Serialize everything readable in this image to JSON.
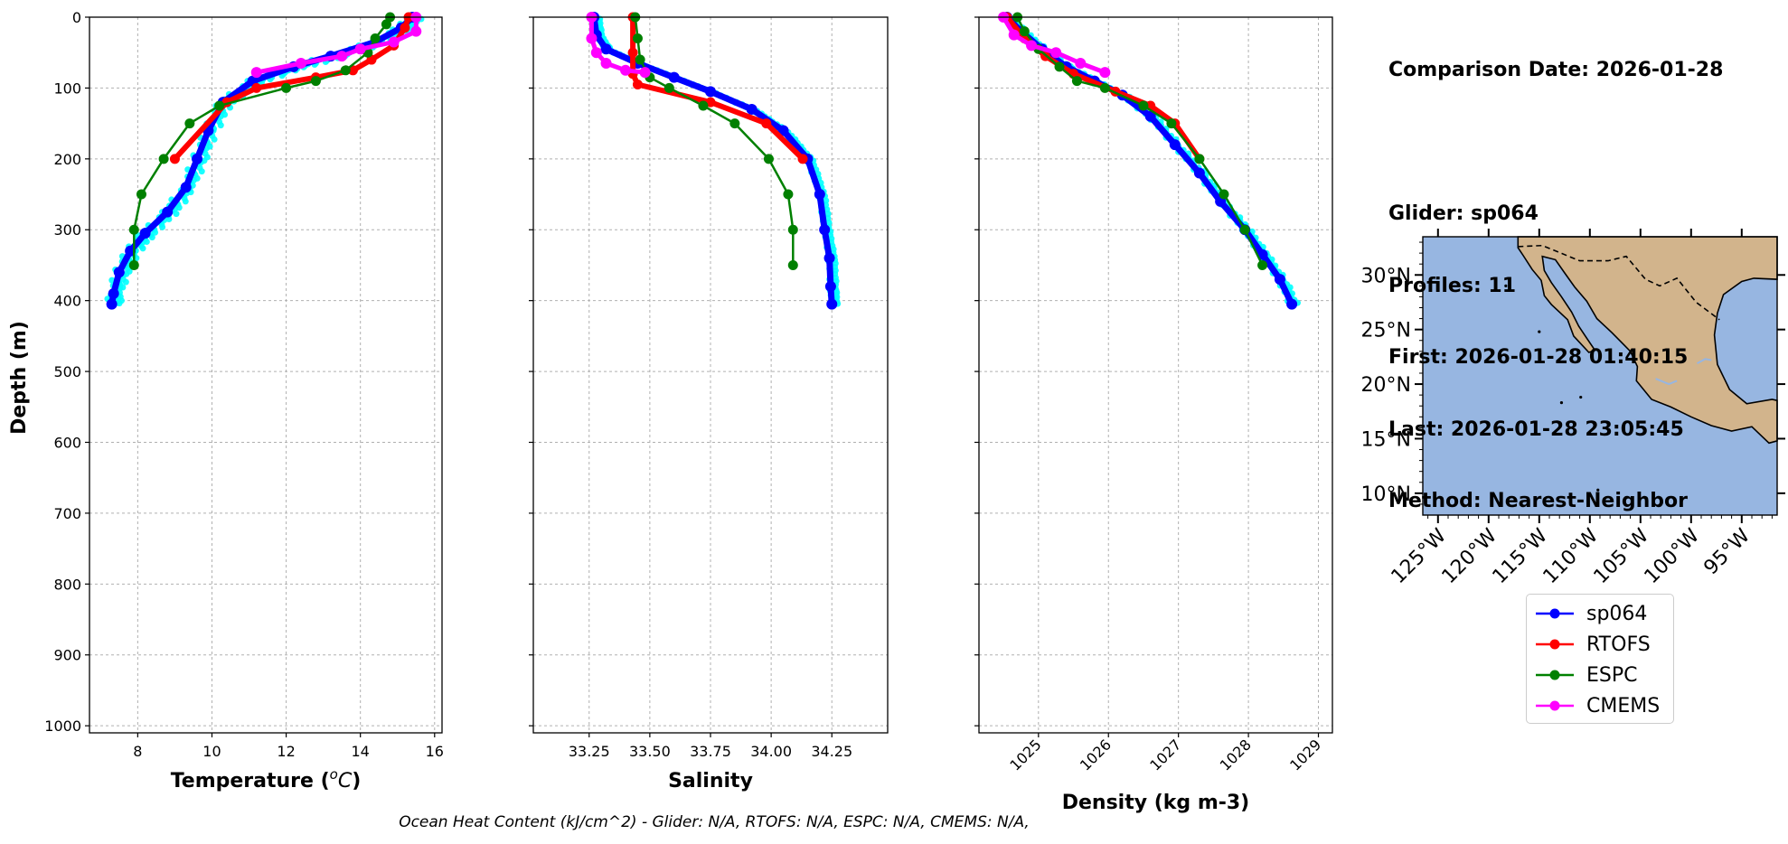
{
  "info": {
    "comparison_date": "Comparison Date: 2026-01-28",
    "glider": "Glider: sp064",
    "profiles": "Profiles: 11",
    "first": "First: 2026-01-28 01:40:15",
    "last": "Last: 2026-01-28 23:05:45",
    "method": "Method: Nearest-Neighbor"
  },
  "footer": "Ocean Heat Content (kJ/cm^2) - Glider: N/A,  RTOFS: N/A,  ESPC: N/A,  CMEMS: N/A,",
  "colors": {
    "sp064": "#0000ff",
    "sp064_points": "#00ffff",
    "RTOFS": "#ff0000",
    "ESPC": "#008000",
    "CMEMS": "#ff00ff",
    "ocean": "#97b6e1",
    "land": "#d2b48c"
  },
  "chart_data": [
    {
      "type": "line",
      "xlabel": "Temperature (°C)",
      "ylabel": "Depth (m)",
      "xlim": [
        6.7,
        16.2
      ],
      "ylim": [
        1010,
        0
      ],
      "xticks": [
        8,
        10,
        12,
        14,
        16
      ],
      "yticks": [
        0,
        100,
        200,
        300,
        400,
        500,
        600,
        700,
        800,
        900,
        1000
      ],
      "grid": true,
      "series": [
        {
          "name": "sp064",
          "points": [
            [
              15.4,
              0
            ],
            [
              15.1,
              15
            ],
            [
              14.4,
              35
            ],
            [
              13.2,
              55
            ],
            [
              12.2,
              70
            ],
            [
              11.1,
              90
            ],
            [
              10.3,
              120
            ],
            [
              9.9,
              160
            ],
            [
              9.6,
              200
            ],
            [
              9.3,
              240
            ],
            [
              8.8,
              275
            ],
            [
              8.2,
              305
            ],
            [
              7.8,
              330
            ],
            [
              7.5,
              360
            ],
            [
              7.35,
              390
            ],
            [
              7.3,
              405
            ]
          ]
        },
        {
          "name": "RTOFS",
          "points": [
            [
              15.3,
              0
            ],
            [
              15.2,
              15
            ],
            [
              14.9,
              40
            ],
            [
              14.3,
              60
            ],
            [
              13.8,
              75
            ],
            [
              12.8,
              85
            ],
            [
              11.2,
              100
            ],
            [
              10.4,
              120
            ],
            [
              9.0,
              200
            ]
          ]
        },
        {
          "name": "ESPC",
          "points": [
            [
              14.8,
              0
            ],
            [
              14.7,
              10
            ],
            [
              14.4,
              30
            ],
            [
              14.2,
              50
            ],
            [
              13.6,
              75
            ],
            [
              12.8,
              90
            ],
            [
              12.0,
              100
            ],
            [
              10.2,
              125
            ],
            [
              9.4,
              150
            ],
            [
              8.7,
              200
            ],
            [
              8.1,
              250
            ],
            [
              7.9,
              300
            ],
            [
              7.9,
              350
            ]
          ]
        },
        {
          "name": "CMEMS",
          "points": [
            [
              15.5,
              0
            ],
            [
              15.5,
              20
            ],
            [
              14.9,
              35
            ],
            [
              14.0,
              45
            ],
            [
              13.5,
              55
            ],
            [
              12.4,
              65
            ],
            [
              11.2,
              78
            ]
          ]
        }
      ]
    },
    {
      "type": "line",
      "xlabel": "Salinity",
      "xlim": [
        33.02,
        34.48
      ],
      "ylim": [
        1010,
        0
      ],
      "xticks": [
        33.25,
        33.5,
        33.75,
        34.0,
        34.25
      ],
      "xtick_labels": [
        "33.25",
        "33.50",
        "33.75",
        "34.00",
        "34.25"
      ],
      "grid": true,
      "series": [
        {
          "name": "sp064",
          "points": [
            [
              33.27,
              0
            ],
            [
              33.28,
              25
            ],
            [
              33.32,
              45
            ],
            [
              33.45,
              65
            ],
            [
              33.6,
              85
            ],
            [
              33.75,
              105
            ],
            [
              33.92,
              130
            ],
            [
              34.05,
              160
            ],
            [
              34.15,
              200
            ],
            [
              34.2,
              250
            ],
            [
              34.22,
              300
            ],
            [
              34.24,
              340
            ],
            [
              34.245,
              380
            ],
            [
              34.25,
              405
            ]
          ]
        },
        {
          "name": "RTOFS",
          "points": [
            [
              33.43,
              0
            ],
            [
              33.43,
              50
            ],
            [
              33.43,
              80
            ],
            [
              33.45,
              95
            ],
            [
              33.75,
              120
            ],
            [
              33.98,
              150
            ],
            [
              34.13,
              200
            ]
          ]
        },
        {
          "name": "ESPC",
          "points": [
            [
              33.44,
              0
            ],
            [
              33.45,
              30
            ],
            [
              33.46,
              60
            ],
            [
              33.5,
              85
            ],
            [
              33.58,
              100
            ],
            [
              33.72,
              125
            ],
            [
              33.85,
              150
            ],
            [
              33.99,
              200
            ],
            [
              34.07,
              250
            ],
            [
              34.09,
              300
            ],
            [
              34.09,
              350
            ]
          ]
        },
        {
          "name": "CMEMS",
          "points": [
            [
              33.26,
              0
            ],
            [
              33.26,
              30
            ],
            [
              33.28,
              50
            ],
            [
              33.32,
              65
            ],
            [
              33.4,
              75
            ],
            [
              33.48,
              78
            ]
          ]
        }
      ]
    },
    {
      "type": "line",
      "xlabel": "Density (kg m-3)",
      "xlim": [
        1024.15,
        1029.2
      ],
      "ylim": [
        1010,
        0
      ],
      "xticks": [
        1025,
        1026,
        1027,
        1028,
        1029
      ],
      "grid": true,
      "series": [
        {
          "name": "sp064",
          "points": [
            [
              1024.55,
              0
            ],
            [
              1024.75,
              20
            ],
            [
              1025.05,
              45
            ],
            [
              1025.4,
              70
            ],
            [
              1025.8,
              90
            ],
            [
              1026.2,
              110
            ],
            [
              1026.6,
              140
            ],
            [
              1026.95,
              180
            ],
            [
              1027.3,
              220
            ],
            [
              1027.6,
              260
            ],
            [
              1027.95,
              300
            ],
            [
              1028.2,
              335
            ],
            [
              1028.45,
              370
            ],
            [
              1028.62,
              405
            ]
          ]
        },
        {
          "name": "RTOFS",
          "points": [
            [
              1024.55,
              0
            ],
            [
              1024.8,
              30
            ],
            [
              1025.1,
              55
            ],
            [
              1025.5,
              80
            ],
            [
              1026.1,
              105
            ],
            [
              1026.6,
              125
            ],
            [
              1026.95,
              150
            ],
            [
              1027.3,
              200
            ]
          ]
        },
        {
          "name": "ESPC",
          "points": [
            [
              1024.7,
              0
            ],
            [
              1024.8,
              20
            ],
            [
              1025.0,
              45
            ],
            [
              1025.3,
              70
            ],
            [
              1025.55,
              90
            ],
            [
              1025.95,
              100
            ],
            [
              1026.5,
              125
            ],
            [
              1026.9,
              150
            ],
            [
              1027.3,
              200
            ],
            [
              1027.65,
              250
            ],
            [
              1027.95,
              300
            ],
            [
              1028.2,
              350
            ]
          ]
        },
        {
          "name": "CMEMS",
          "points": [
            [
              1024.5,
              0
            ],
            [
              1024.65,
              25
            ],
            [
              1024.9,
              40
            ],
            [
              1025.25,
              50
            ],
            [
              1025.6,
              65
            ],
            [
              1025.95,
              78
            ]
          ]
        }
      ]
    }
  ],
  "map": {
    "lon_labels": [
      "125°W",
      "120°W",
      "115°W",
      "110°W",
      "105°W",
      "100°W",
      "95°W"
    ],
    "lat_labels": [
      "30°N",
      "25°N",
      "20°N",
      "15°N",
      "10°N"
    ]
  },
  "legend": [
    "sp064",
    "RTOFS",
    "ESPC",
    "CMEMS"
  ]
}
